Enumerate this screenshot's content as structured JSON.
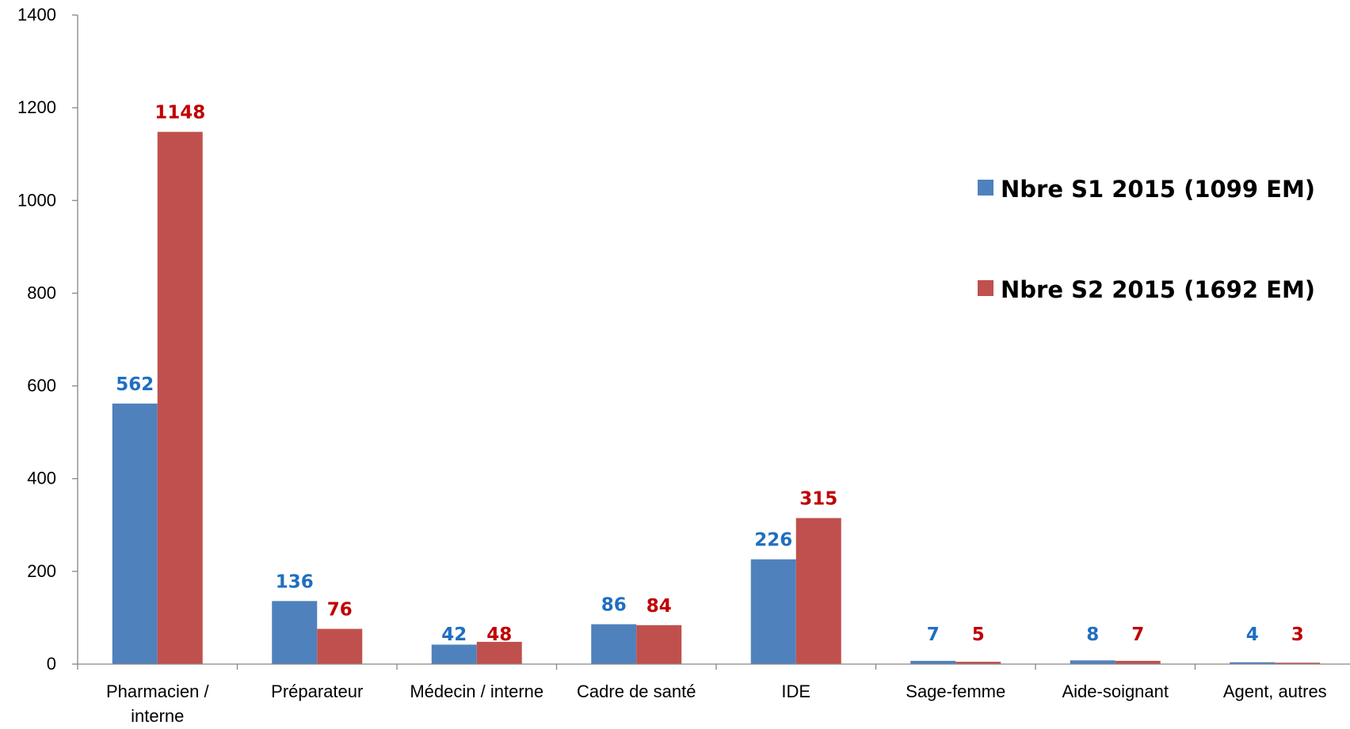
{
  "chart_data": {
    "type": "bar",
    "categories": [
      "Pharmacien / interne",
      "Préparateur",
      "Médecin / interne",
      "Cadre de santé",
      "IDE",
      "Sage-femme",
      "Aide-soignant",
      "Agent, autres"
    ],
    "series": [
      {
        "name": "Nbre S1 2015 (1099 EM)",
        "values": [
          562,
          136,
          42,
          86,
          226,
          7,
          8,
          4
        ],
        "color": "#4F81BD",
        "label_color": "#1F6FC0"
      },
      {
        "name": "Nbre S2 2015 (1692 EM)",
        "values": [
          1148,
          76,
          48,
          84,
          315,
          5,
          7,
          3
        ],
        "color": "#C0504D",
        "label_color": "#C00000"
      }
    ],
    "ylim": [
      0,
      1400
    ],
    "yticks": [
      0,
      200,
      400,
      600,
      800,
      1000,
      1200,
      1400
    ],
    "grid": false,
    "legend": "right"
  }
}
